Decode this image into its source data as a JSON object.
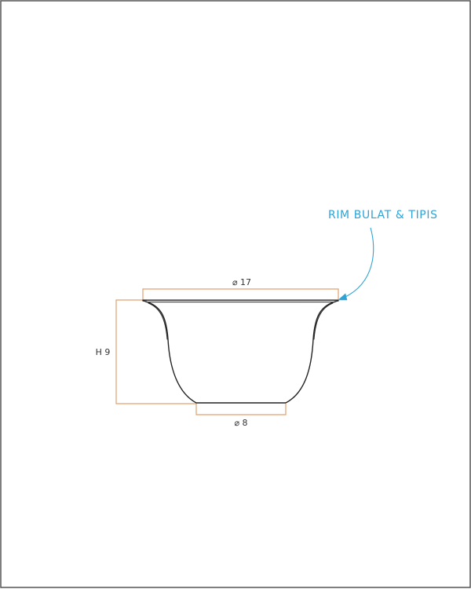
{
  "colors": {
    "dimension": "#e0a070",
    "callout": "#2fa3d6",
    "outline": "#222222",
    "frame": "#555555"
  },
  "dimensions": {
    "top_diameter": "⌀ 17",
    "height": "H  9",
    "base_diameter": "⌀ 8"
  },
  "callout": {
    "text": "RIM BULAT & TIPIS"
  }
}
